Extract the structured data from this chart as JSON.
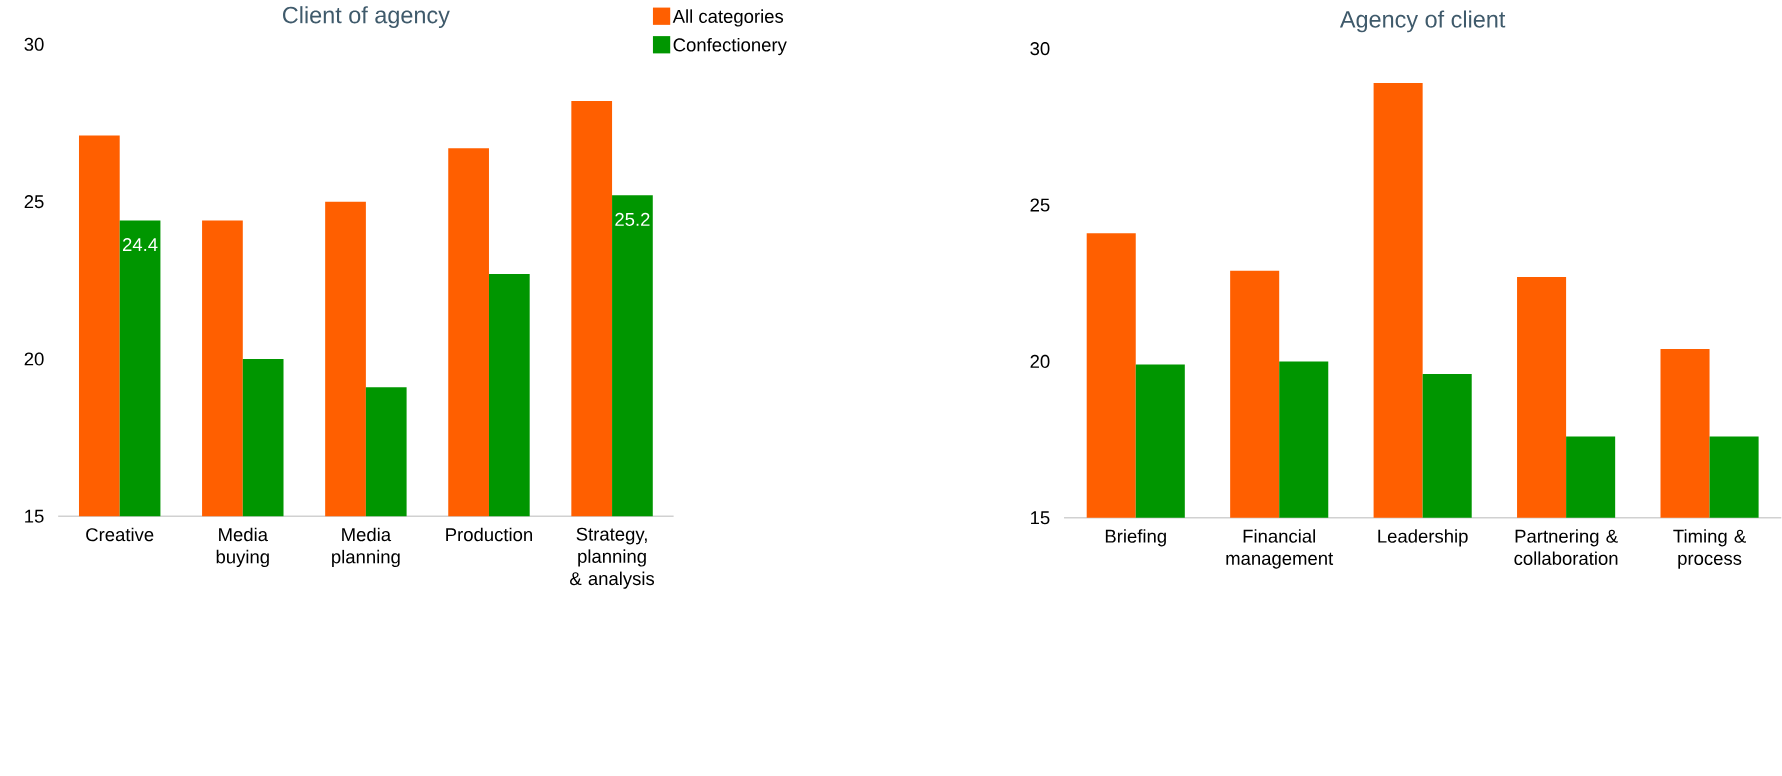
{
  "chart_data": [
    {
      "type": "bar",
      "title": "Client of agency",
      "categories": [
        "Creative",
        "Media buying",
        "Media planning",
        "Production",
        "Strategy, planning & analysis"
      ],
      "ylim": [
        15,
        30
      ],
      "yticks": [
        15,
        20,
        25,
        30
      ],
      "legend": "top right",
      "series": [
        {
          "name": "All categories",
          "color": "#ff5f00",
          "values": [
            27.1,
            24.4,
            25.0,
            26.7,
            28.2
          ]
        },
        {
          "name": "Confectionery",
          "color": "#009600",
          "values": [
            24.4,
            20.0,
            19.1,
            22.7,
            25.2
          ],
          "value_labels": [
            "24.4",
            null,
            null,
            null,
            "25.2"
          ]
        }
      ]
    },
    {
      "type": "bar",
      "title": "Agency of client",
      "categories": [
        "Briefing",
        "Financial management",
        "Leadership",
        "Partnering & collaboration",
        "Timing & process"
      ],
      "ylim": [
        15,
        30
      ],
      "yticks": [
        15,
        20,
        25,
        30
      ],
      "series": [
        {
          "color": "#ff5f00",
          "values": [
            24.1,
            22.9,
            28.9,
            22.7,
            20.4
          ]
        },
        {
          "color": "#009600",
          "values": [
            19.9,
            20.0,
            19.6,
            17.6,
            17.6
          ]
        }
      ]
    }
  ]
}
